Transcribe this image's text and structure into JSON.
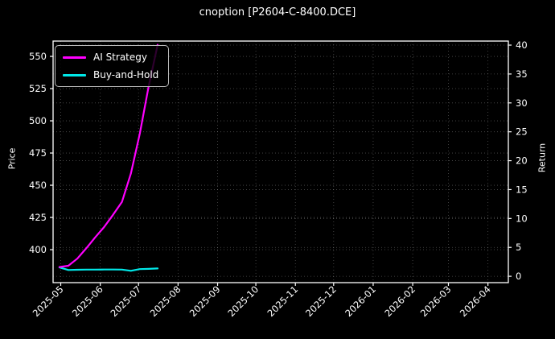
{
  "figure": {
    "background": "#000000",
    "text_color": "#ffffff",
    "spine_color": "#ffffff",
    "grid_color": "rgba(255,255,255,0.30)"
  },
  "chart_data": {
    "type": "line",
    "title": "cnoption [P2604-C-8400.DCE]",
    "grid": true,
    "legend_position": "upper-left",
    "left_axis": {
      "label": "Price",
      "ticks": [
        400,
        425,
        450,
        475,
        500,
        525,
        550
      ],
      "range": [
        374.4,
        561.9
      ]
    },
    "right_axis": {
      "label": "Return",
      "ticks": [
        0,
        5,
        10,
        15,
        20,
        25,
        30,
        35,
        40
      ],
      "range": [
        -1.1,
        40.7
      ]
    },
    "x_axis": {
      "tick_dates": [
        "2025-05-01",
        "2025-06-01",
        "2025-07-01",
        "2025-08-01",
        "2025-09-01",
        "2025-10-01",
        "2025-11-01",
        "2025-12-01",
        "2026-01-01",
        "2026-02-01",
        "2026-03-01",
        "2026-04-01"
      ],
      "tick_labels": [
        "2025-05",
        "2025-06",
        "2025-07",
        "2025-08",
        "2025-09",
        "2025-10",
        "2025-11",
        "2025-12",
        "2026-01",
        "2026-02",
        "2026-03",
        "2026-04"
      ],
      "domain": [
        "2025-04-25",
        "2026-04-17"
      ]
    },
    "x": [
      "2025-04-30",
      "2025-05-07",
      "2025-05-14",
      "2025-05-21",
      "2025-05-28",
      "2025-06-04",
      "2025-06-11",
      "2025-06-18",
      "2025-06-25",
      "2025-07-02",
      "2025-07-09",
      "2025-07-16"
    ],
    "series": [
      {
        "name": "Buy-and-Hold",
        "color": "#00e8e8",
        "value_axis": "price",
        "values": [
          386.2,
          384.2,
          384.4,
          384.5,
          384.5,
          384.6,
          384.6,
          384.5,
          383.6,
          384.9,
          385.1,
          385.4
        ]
      },
      {
        "name": "AI Strategy",
        "color": "#ff00ff",
        "value_axis": "price",
        "values": [
          386.5,
          387.5,
          393.0,
          401.0,
          409.5,
          417.5,
          427.0,
          437.0,
          459.0,
          490.0,
          527.0,
          559.0
        ]
      }
    ],
    "legend_order": [
      "AI Strategy",
      "Buy-and-Hold"
    ]
  }
}
